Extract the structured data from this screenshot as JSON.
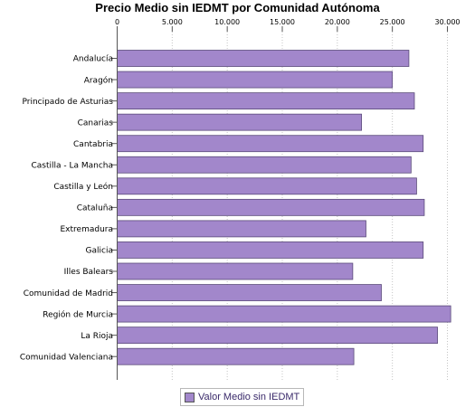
{
  "chart_data": {
    "type": "bar",
    "orientation": "horizontal",
    "title": "Precio Medio sin IEDMT por Comunidad Autónoma",
    "xlabel": "",
    "ylabel": "",
    "xlim": [
      0,
      30000
    ],
    "x_axis_position": "top",
    "x_ticks": [
      0,
      5000,
      10000,
      15000,
      20000,
      25000,
      30000
    ],
    "x_tick_labels": [
      "0",
      "5.000",
      "10.000",
      "15.000",
      "20.000",
      "25.000",
      "30.000"
    ],
    "grid": "vertical dotted",
    "categories": [
      "Andalucía",
      "Aragón",
      "Principado de Asturias",
      "Canarias",
      "Cantabria",
      "Castilla - La Mancha",
      "Castilla y León",
      "Cataluña",
      "Extremadura",
      "Galicia",
      "Illes Balears",
      "Comunidad de Madrid",
      "Región de Murcia",
      "La Rioja",
      "Comunidad Valenciana"
    ],
    "series": [
      {
        "name": "Valor Medio sin IEDMT",
        "color": "#a287cb",
        "values": [
          26500,
          25000,
          27000,
          22200,
          27800,
          26700,
          27200,
          27900,
          22600,
          27800,
          21400,
          24000,
          30300,
          29100,
          21500
        ]
      }
    ],
    "legend_position": "bottom-center"
  }
}
